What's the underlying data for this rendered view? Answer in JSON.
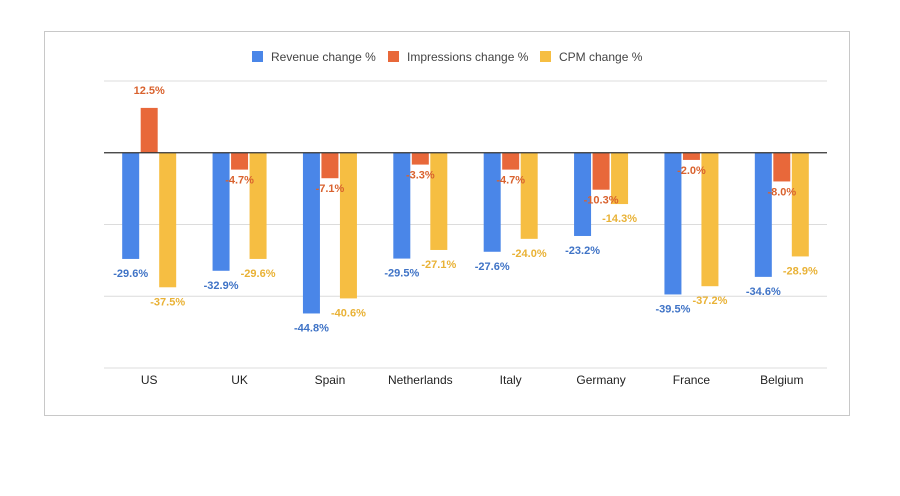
{
  "chart_data": {
    "type": "bar",
    "categories": [
      "US",
      "UK",
      "Spain",
      "Netherlands",
      "Italy",
      "Germany",
      "France",
      "Belgium"
    ],
    "series": [
      {
        "name": "Revenue change %",
        "color": "#4a86e8",
        "values": [
          -29.6,
          -32.9,
          -44.8,
          -29.5,
          -27.6,
          -23.2,
          -39.5,
          -34.6
        ]
      },
      {
        "name": "Impressions change %",
        "color": "#e8683a",
        "values": [
          12.5,
          -4.7,
          -7.1,
          -3.3,
          -4.7,
          -10.3,
          -2.0,
          -8.0
        ]
      },
      {
        "name": "CPM change %",
        "color": "#f6be42",
        "values": [
          -37.5,
          -29.6,
          -40.6,
          -27.1,
          -24.0,
          -14.3,
          -37.2,
          -28.9
        ]
      }
    ],
    "data_labels": [
      [
        "-29.6%",
        "-32.9%",
        "-44.8%",
        "-29.5%",
        "-27.6%",
        "-23.2%",
        "-39.5%",
        "-34.6%"
      ],
      [
        "12.5%",
        "-4.7%",
        "-7.1%",
        "-3.3%",
        "-4.7%",
        "-10.3%",
        "-2.0%",
        "-8.0%"
      ],
      [
        "-37.5%",
        "-29.6%",
        "-40.6%",
        "-27.1%",
        "-24.0%",
        "-14.3%",
        "-37.2%",
        "-28.9%"
      ]
    ],
    "ylim": [
      -60,
      20
    ],
    "grid": true,
    "legend_position": "top"
  }
}
